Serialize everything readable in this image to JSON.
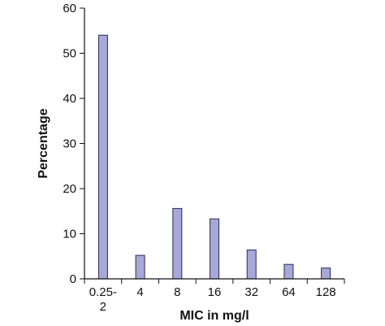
{
  "chart_data": {
    "type": "bar",
    "title": "",
    "xlabel": "MIC in mg/l",
    "ylabel": "Percentage",
    "categories": [
      [
        "0.25-",
        "2"
      ],
      [
        "4"
      ],
      [
        "8"
      ],
      [
        "16"
      ],
      [
        "32"
      ],
      [
        "64"
      ],
      [
        "128"
      ]
    ],
    "values": [
      54,
      5.2,
      15.6,
      13.3,
      6.4,
      3.2,
      2.4
    ],
    "ylim": [
      0,
      60
    ],
    "yticks": [
      0,
      10,
      20,
      30,
      40,
      50,
      60
    ],
    "grid": false,
    "legend": "none",
    "colors": {
      "bar_fill": "#a5a8d8",
      "bar_stroke": "#2b2b55",
      "axis": "#111111"
    }
  }
}
